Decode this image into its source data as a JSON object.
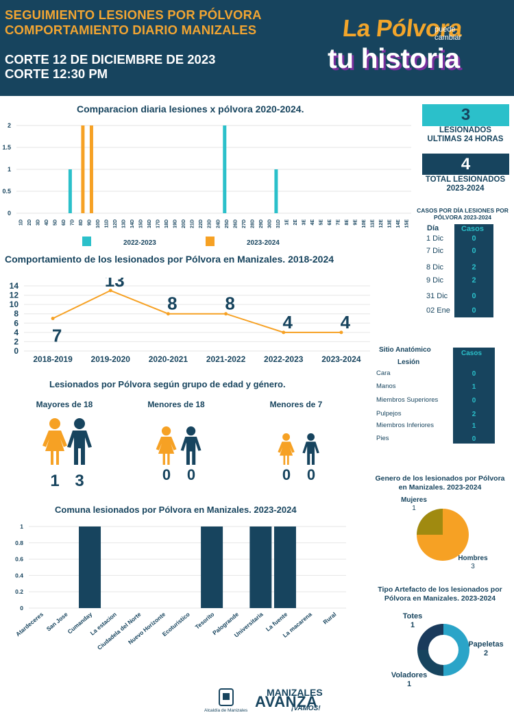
{
  "header": {
    "title_line1": "SEGUIMIENTO LESIONES POR PÓLVORA",
    "title_line2": "COMPORTAMIENTO DIARIO MANIZALES",
    "cut_date": "CORTE 12 DE DICIEMBRE DE 2023",
    "cut_time": "CORTE 12:30 PM",
    "logo_line1": "La Pólvora",
    "logo_small": "puede cambiar",
    "logo_line2": "tu historia"
  },
  "colors": {
    "navy": "#17445e",
    "cyan": "#2bc0ca",
    "orange": "#f6a124",
    "olive": "#a08a10",
    "title_orange": "#f2a532"
  },
  "summary": {
    "last24_value": "3",
    "last24_label_1": "LESIONADOS",
    "last24_label_2": "ULTIMAS 24 HORAS",
    "total_value": "4",
    "total_label_1": "TOTAL LESIONADOS",
    "total_label_2": "2023-2024"
  },
  "daily_table": {
    "title_1": "CASOS POR DÍA LESIONES POR",
    "title_2": "PÓLVORA 2023-2024",
    "col_day": "Día",
    "col_cases": "Casos",
    "rows": [
      {
        "day": "1 Dic",
        "cases": "0"
      },
      {
        "day": "7 Dic",
        "cases": "0"
      },
      {
        "day": "8 Dic",
        "cases": "2"
      },
      {
        "day": "9 Dic",
        "cases": "2"
      },
      {
        "day": "31 Dic",
        "cases": "0"
      },
      {
        "day": "02 Ene",
        "cases": "0"
      }
    ]
  },
  "anatomic_table": {
    "col_site_1": "Sitio Anatómico",
    "col_site_2": "Lesión",
    "col_cases": "Casos",
    "rows": [
      {
        "site": "Cara",
        "cases": "0"
      },
      {
        "site": "Manos",
        "cases": "1"
      },
      {
        "site": "Miembros Superiores",
        "cases": "0"
      },
      {
        "site": "Pulpejos",
        "cases": "2"
      },
      {
        "site": "Miembros Inferiores",
        "cases": "1"
      },
      {
        "site": "Pies",
        "cases": "0"
      }
    ]
  },
  "age_gender": {
    "title": "Lesionados por Pólvora según grupo de edad y género.",
    "groups": [
      {
        "label": "Mayores de 18",
        "female": "1",
        "male": "3"
      },
      {
        "label": "Menores de 18",
        "female": "0",
        "male": "0"
      },
      {
        "label": "Menores de 7",
        "female": "0",
        "male": "0"
      }
    ]
  },
  "footer": {
    "alcaldia": "Alcaldía de Manizales",
    "brand_1": "MANIZALES",
    "brand_2": "AVANZA",
    "brand_3": "¡VAMOS!"
  },
  "chart_data": [
    {
      "type": "bar",
      "title": "Comparacion diaria  lesiones x pólvora 2020-2024.",
      "categories": [
        "1D",
        "2D",
        "3D",
        "4D",
        "5D",
        "6D",
        "7D",
        "8D",
        "9D",
        "10D",
        "11D",
        "12D",
        "13D",
        "14D",
        "15D",
        "16D",
        "17D",
        "18D",
        "19D",
        "20D",
        "21D",
        "22D",
        "23D",
        "24D",
        "25D",
        "26D",
        "27D",
        "28D",
        "29D",
        "30D",
        "31D",
        "1E",
        "2E",
        "3E",
        "4E",
        "5E",
        "6E",
        "7E",
        "8E",
        "9E",
        "10E",
        "11E",
        "12E",
        "13E",
        "14E",
        "15E"
      ],
      "series": [
        {
          "name": "2022-2023",
          "color": "#2bc0ca",
          "values": [
            0,
            0,
            0,
            0,
            0,
            0,
            1,
            0,
            0,
            0,
            0,
            0,
            0,
            0,
            0,
            0,
            0,
            0,
            0,
            0,
            0,
            0,
            0,
            0,
            2,
            0,
            0,
            0,
            0,
            0,
            1,
            0,
            0,
            0,
            0,
            0,
            0,
            0,
            0,
            0,
            0,
            0,
            0,
            0,
            0,
            0
          ]
        },
        {
          "name": "2023-2024",
          "color": "#f6a124",
          "values": [
            0,
            0,
            0,
            0,
            0,
            0,
            0,
            2,
            2,
            0,
            0,
            0,
            0,
            0,
            0,
            0,
            0,
            0,
            0,
            0,
            0,
            0,
            0,
            0,
            0,
            0,
            0,
            0,
            0,
            0,
            0,
            0,
            0,
            0,
            0,
            0,
            0,
            0,
            0,
            0,
            0,
            0,
            0,
            0,
            0,
            0
          ]
        }
      ],
      "yticks": [
        "0",
        "0.5",
        "1",
        "1.5",
        "2"
      ],
      "ylim": [
        0,
        2
      ],
      "legend": "bottom"
    },
    {
      "type": "line",
      "title": "Comportamiento de los lesionados por Pólvora en Manizales. 2018-2024",
      "categories": [
        "2018-2019",
        "2019-2020",
        "2020-2021",
        "2021-2022",
        "2022-2023",
        "2023-2024"
      ],
      "values": [
        7,
        13,
        8,
        8,
        4,
        4
      ],
      "yticks": [
        "0",
        "2",
        "4",
        "6",
        "8",
        "10",
        "12",
        "14"
      ],
      "ylim": [
        0,
        14
      ],
      "color": "#f6a124"
    },
    {
      "type": "bar",
      "title": "Comuna lesionados por Pólvora en Manizales. 2023-2024",
      "categories": [
        "Atardeceres",
        "San Jose",
        "Cumanday",
        "La estacion",
        "Ciudadela del Norte",
        "Nuevo Horizonte",
        "Ecoturistico",
        "Tesorito",
        "Palogrande",
        "Universitaria",
        "La fuente",
        "La macarena",
        "Rural"
      ],
      "values": [
        0,
        0,
        1,
        0,
        0,
        0,
        0,
        1,
        0,
        1,
        1,
        0,
        0
      ],
      "yticks": [
        "0",
        "0.2",
        "0.4",
        "0.6",
        "0.8",
        "1"
      ],
      "ylim": [
        0,
        1
      ],
      "color": "#17445e"
    },
    {
      "type": "pie",
      "title_1": "Genero de los lesionados por Pólvora",
      "title_2": "en Manizales. 2023-2024",
      "slices": [
        {
          "label": "Mujeres",
          "value": 1,
          "color": "#a08a10"
        },
        {
          "label": "Hombres",
          "value": 3,
          "color": "#f6a124"
        }
      ]
    },
    {
      "type": "pie",
      "subtype": "donut",
      "title_1": "Tipo Artefacto de los lesionados por",
      "title_2": "Pólvora en Manizales. 2023-2024",
      "slices": [
        {
          "label": "Totes",
          "value": 1,
          "color": "#1a3a5c"
        },
        {
          "label": "Papeletas",
          "value": 2,
          "color": "#2aa4c8"
        },
        {
          "label": "Voladores",
          "value": 1,
          "color": "#17445e"
        }
      ]
    }
  ]
}
